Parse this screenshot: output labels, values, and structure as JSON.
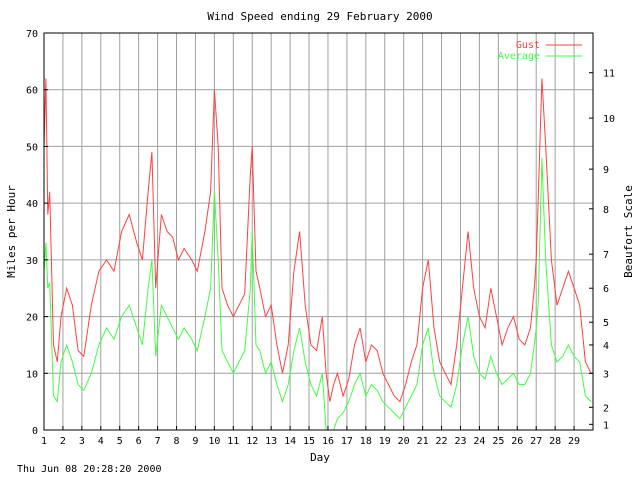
{
  "chart_data": {
    "type": "line",
    "title": "Wind Speed ending 29 February 2000",
    "xlabel": "Day",
    "ylabel": "Miles per Hour",
    "y2label": "Beaufort Scale",
    "xlim": [
      1,
      30
    ],
    "ylim": [
      0,
      70
    ],
    "x_ticks": [
      "1",
      "2",
      "3",
      "4",
      "5",
      "6",
      "7",
      "8",
      "9",
      "10",
      "11",
      "12",
      "13",
      "14",
      "15",
      "16",
      "17",
      "18",
      "19",
      "20",
      "21",
      "22",
      "23",
      "24",
      "25",
      "26",
      "27",
      "28",
      "29"
    ],
    "y_ticks": [
      "0",
      "10",
      "20",
      "30",
      "40",
      "50",
      "60",
      "70"
    ],
    "beaufort_ticks": [
      {
        "label": "1",
        "mph": 1
      },
      {
        "label": "2",
        "mph": 4
      },
      {
        "label": "3",
        "mph": 10
      },
      {
        "label": "4",
        "mph": 15
      },
      {
        "label": "5",
        "mph": 19
      },
      {
        "label": "6",
        "mph": 25
      },
      {
        "label": "7",
        "mph": 31
      },
      {
        "label": "8",
        "mph": 39
      },
      {
        "label": "9",
        "mph": 46
      },
      {
        "label": "10",
        "mph": 55
      },
      {
        "label": "11",
        "mph": 63
      }
    ],
    "grid": true,
    "legend_position": "top-right",
    "series": [
      {
        "name": "Gust",
        "color": "#ff4040",
        "x": [
          1,
          1.1,
          1.2,
          1.3,
          1.5,
          1.7,
          1.9,
          2.2,
          2.5,
          2.8,
          3.1,
          3.5,
          3.9,
          4.3,
          4.7,
          5.1,
          5.5,
          5.9,
          6.2,
          6.5,
          6.7,
          6.9,
          7.2,
          7.5,
          7.8,
          8.1,
          8.4,
          8.8,
          9.1,
          9.5,
          9.8,
          10.0,
          10.2,
          10.4,
          10.7,
          11.0,
          11.3,
          11.6,
          11.9,
          12.0,
          12.2,
          12.4,
          12.7,
          13.0,
          13.3,
          13.6,
          13.9,
          14.2,
          14.5,
          14.8,
          15.1,
          15.4,
          15.7,
          15.9,
          16.1,
          16.3,
          16.5,
          16.8,
          17.1,
          17.4,
          17.7,
          18.0,
          18.3,
          18.6,
          18.9,
          19.2,
          19.5,
          19.8,
          20.1,
          20.4,
          20.7,
          21.0,
          21.3,
          21.6,
          21.9,
          22.2,
          22.5,
          22.8,
          23.1,
          23.4,
          23.7,
          24.0,
          24.3,
          24.6,
          24.9,
          25.2,
          25.5,
          25.8,
          26.1,
          26.4,
          26.7,
          26.9,
          27.0,
          27.1,
          27.3,
          27.5,
          27.8,
          28.1,
          28.4,
          28.7,
          29.0,
          29.3,
          29.6,
          29.9
        ],
        "values": [
          50,
          62,
          38,
          42,
          15,
          12,
          20,
          25,
          22,
          14,
          13,
          22,
          28,
          30,
          28,
          35,
          38,
          33,
          30,
          42,
          49,
          25,
          38,
          35,
          34,
          30,
          32,
          30,
          28,
          35,
          42,
          60,
          50,
          25,
          22,
          20,
          22,
          24,
          45,
          50,
          28,
          25,
          20,
          22,
          15,
          10,
          15,
          28,
          35,
          22,
          15,
          14,
          20,
          10,
          5,
          8,
          10,
          6,
          9,
          15,
          18,
          12,
          15,
          14,
          10,
          8,
          6,
          5,
          8,
          12,
          15,
          25,
          30,
          18,
          12,
          10,
          8,
          15,
          25,
          35,
          25,
          20,
          18,
          25,
          20,
          15,
          18,
          20,
          16,
          15,
          18,
          25,
          30,
          40,
          62,
          50,
          30,
          22,
          25,
          28,
          25,
          22,
          12,
          10
        ]
      },
      {
        "name": "Average",
        "color": "#40ff40",
        "x": [
          1,
          1.1,
          1.2,
          1.3,
          1.5,
          1.7,
          1.9,
          2.2,
          2.5,
          2.8,
          3.1,
          3.5,
          3.9,
          4.3,
          4.7,
          5.1,
          5.5,
          5.9,
          6.2,
          6.5,
          6.7,
          6.9,
          7.2,
          7.5,
          7.8,
          8.1,
          8.4,
          8.8,
          9.1,
          9.5,
          9.8,
          10.0,
          10.2,
          10.4,
          10.7,
          11.0,
          11.3,
          11.6,
          11.9,
          12.0,
          12.2,
          12.4,
          12.7,
          13.0,
          13.3,
          13.6,
          13.9,
          14.2,
          14.5,
          14.8,
          15.1,
          15.4,
          15.7,
          15.9,
          16.1,
          16.3,
          16.5,
          16.8,
          17.1,
          17.4,
          17.7,
          18.0,
          18.3,
          18.6,
          18.9,
          19.2,
          19.5,
          19.8,
          20.1,
          20.4,
          20.7,
          21.0,
          21.3,
          21.6,
          21.9,
          22.2,
          22.5,
          22.8,
          23.1,
          23.4,
          23.7,
          24.0,
          24.3,
          24.6,
          24.9,
          25.2,
          25.5,
          25.8,
          26.1,
          26.4,
          26.7,
          26.9,
          27.0,
          27.1,
          27.3,
          27.5,
          27.8,
          28.1,
          28.4,
          28.7,
          29.0,
          29.3,
          29.6,
          29.9
        ],
        "values": [
          28,
          33,
          25,
          26,
          6,
          5,
          12,
          15,
          12,
          8,
          7,
          10,
          15,
          18,
          16,
          20,
          22,
          18,
          15,
          25,
          30,
          13,
          22,
          20,
          18,
          16,
          18,
          16,
          14,
          20,
          25,
          42,
          30,
          14,
          12,
          10,
          12,
          14,
          25,
          35,
          15,
          14,
          10,
          12,
          8,
          5,
          8,
          14,
          18,
          12,
          8,
          6,
          10,
          0,
          0,
          0,
          2,
          3,
          5,
          8,
          10,
          6,
          8,
          7,
          5,
          4,
          3,
          2,
          4,
          6,
          8,
          15,
          18,
          10,
          6,
          5,
          4,
          8,
          15,
          20,
          13,
          10,
          9,
          13,
          10,
          8,
          9,
          10,
          8,
          8,
          10,
          15,
          18,
          22,
          48,
          30,
          15,
          12,
          13,
          15,
          13,
          12,
          6,
          5
        ]
      }
    ]
  },
  "footer": {
    "timestamp": "Thu Jun 08 20:28:20 2000"
  }
}
